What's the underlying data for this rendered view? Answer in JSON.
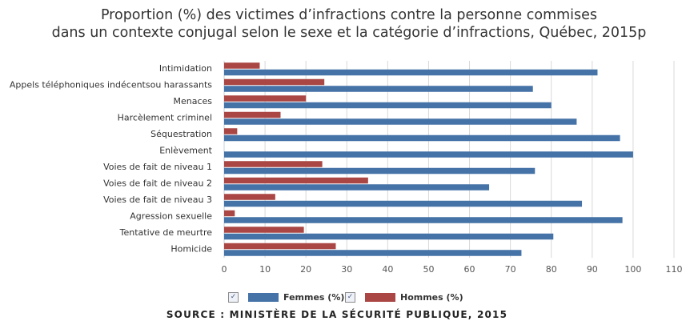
{
  "chart_data": {
    "type": "bar",
    "orientation": "horizontal",
    "title_lines": [
      "Proportion (%) des victimes d’infractions contre la personne commises",
      "dans un contexte conjugal selon le sexe et la catégorie d’infractions, Québec, 2015p"
    ],
    "categories": [
      "Intimidation",
      "Appels téléphoniques indécentsou harassants",
      "Menaces",
      "Harcèlement criminel",
      "Séquestration",
      "Enlèvement",
      "Voies de fait de niveau 1",
      "Voies de fait de niveau 2",
      "Voies de fait de niveau 3",
      "Agression sexuelle",
      "Tentative de meurtre",
      "Homicide"
    ],
    "series": [
      {
        "name": "Hommes (%)",
        "color": "#aa4643",
        "values": [
          8.7,
          24.5,
          20,
          13.8,
          3.2,
          0,
          24,
          35.2,
          12.5,
          2.6,
          19.5,
          27.3
        ]
      },
      {
        "name": "Femmes (%)",
        "color": "#4572a7",
        "values": [
          91.3,
          75.5,
          80,
          86.2,
          96.8,
          100,
          76,
          64.8,
          87.5,
          97.4,
          80.5,
          72.7
        ]
      }
    ],
    "xlim": [
      0,
      110
    ],
    "xticks": [
      0,
      10,
      20,
      30,
      40,
      50,
      60,
      70,
      80,
      90,
      100,
      110
    ],
    "grid": true,
    "legend_position": "bottom",
    "source": "SOURCE : MINISTÈRE DE LA SÉCURITÉ PUBLIQUE, 2015"
  }
}
